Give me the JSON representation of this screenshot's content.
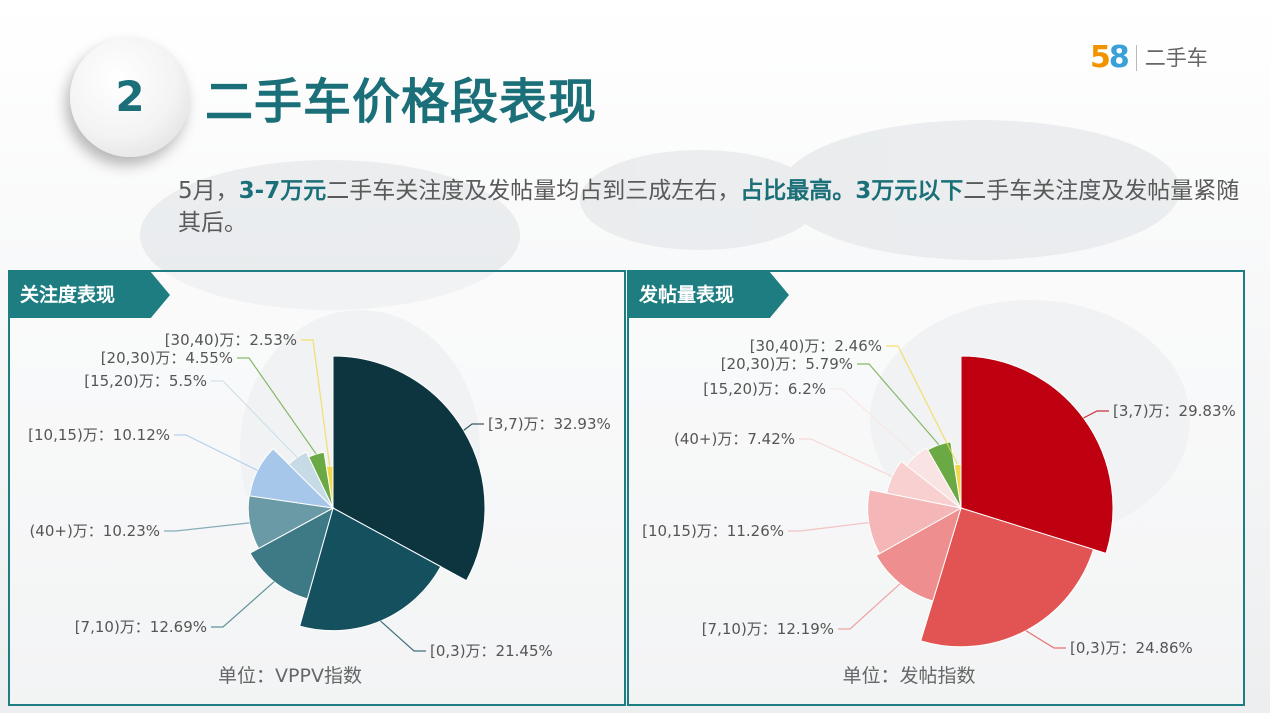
{
  "header": {
    "section_number": "2",
    "title": "二手车价格段表现",
    "logo_mark": "58",
    "logo_text": "二手车"
  },
  "summary": {
    "p1": "5月，",
    "b1": "3-7万元",
    "p2": "二手车关注度及发帖量均占到三成左右，",
    "b2": "占比最高。",
    "b3": "3万元以下",
    "p3": "二手车关注度及发帖量紧随其后。"
  },
  "colors": {
    "teal": "#1b6f78",
    "panel_border": "#1d7d80",
    "red": "#c0000f"
  },
  "chart_data": [
    {
      "type": "pie",
      "title": "关注度表现",
      "unit_label": "单位：VPPV指数",
      "variant": "nightingale-rose",
      "slices": [
        {
          "label": "[3,7)万：32.93%",
          "value": 32.93,
          "color": "#0d3540"
        },
        {
          "label": "[0,3)万：21.45%",
          "value": 21.45,
          "color": "#15505f"
        },
        {
          "label": "[7,10)万：12.69%",
          "value": 12.69,
          "color": "#3e7a86"
        },
        {
          "label": "(40+)万：10.23%",
          "value": 10.23,
          "color": "#6a9aa6"
        },
        {
          "label": "[10,15)万：10.12%",
          "value": 10.12,
          "color": "#a6c7ea"
        },
        {
          "label": "[15,20)万：5.5%",
          "value": 5.5,
          "color": "#c7dbe6"
        },
        {
          "label": "[20,30)万：4.55%",
          "value": 4.55,
          "color": "#6aa944"
        },
        {
          "label": "[30,40)万：2.53%",
          "value": 2.53,
          "color": "#f1d94f"
        }
      ]
    },
    {
      "type": "pie",
      "title": "发帖量表现",
      "unit_label": "单位：发帖指数",
      "variant": "nightingale-rose",
      "slices": [
        {
          "label": "[3,7)万：29.83%",
          "value": 29.83,
          "color": "#be0010"
        },
        {
          "label": "[0,3)万：24.86%",
          "value": 24.86,
          "color": "#e25353"
        },
        {
          "label": "[7,10)万：12.19%",
          "value": 12.19,
          "color": "#ee8e8e"
        },
        {
          "label": "[10,15)万：11.26%",
          "value": 11.26,
          "color": "#f4b6b6"
        },
        {
          "label": "(40+)万：7.42%",
          "value": 7.42,
          "color": "#f8d0d0"
        },
        {
          "label": "[15,20)万：6.2%",
          "value": 6.2,
          "color": "#fae3e3"
        },
        {
          "label": "[20,30)万：5.79%",
          "value": 5.79,
          "color": "#6aa944"
        },
        {
          "label": "[30,40)万：2.46%",
          "value": 2.46,
          "color": "#f1d94f"
        }
      ]
    }
  ]
}
